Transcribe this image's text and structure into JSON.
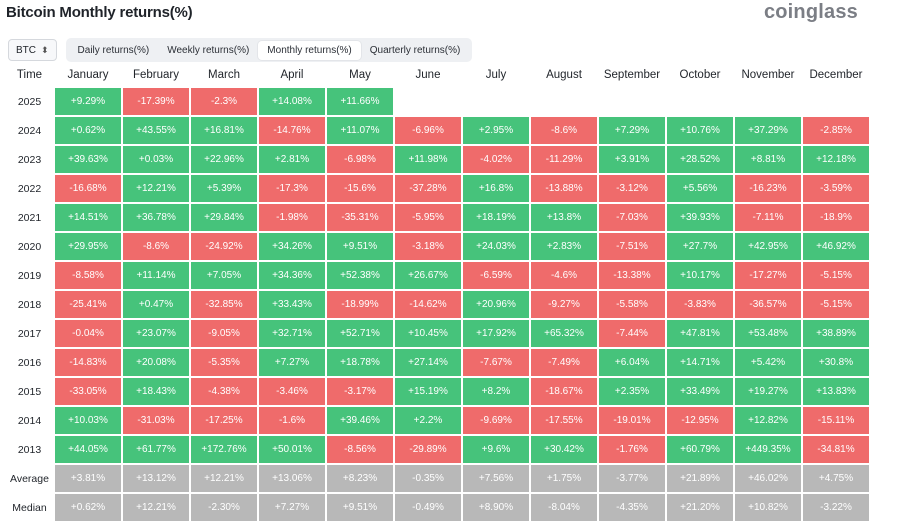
{
  "header": {
    "title": "Bitcoin Monthly returns(%)",
    "brand": "coinglass"
  },
  "toolbar": {
    "coin": "BTC",
    "tabs": [
      "Daily returns(%)",
      "Weekly returns(%)",
      "Monthly returns(%)",
      "Quarterly returns(%)"
    ],
    "active_tab": 2
  },
  "colors": {
    "positive": "#46c37b",
    "negative": "#ef6b6b",
    "summary": "#b8b8b8"
  },
  "chart_data": {
    "type": "table",
    "title": "Bitcoin Monthly returns(%)",
    "corner_label": "Time",
    "columns": [
      "January",
      "February",
      "March",
      "April",
      "May",
      "June",
      "July",
      "August",
      "September",
      "October",
      "November",
      "December"
    ],
    "rows": [
      {
        "label": "2025",
        "values": [
          "+9.29%",
          "-17.39%",
          "-2.3%",
          "+14.08%",
          "+11.66%",
          "",
          "",
          "",
          "",
          "",
          "",
          ""
        ]
      },
      {
        "label": "2024",
        "values": [
          "+0.62%",
          "+43.55%",
          "+16.81%",
          "-14.76%",
          "+11.07%",
          "-6.96%",
          "+2.95%",
          "-8.6%",
          "+7.29%",
          "+10.76%",
          "+37.29%",
          "-2.85%"
        ]
      },
      {
        "label": "2023",
        "values": [
          "+39.63%",
          "+0.03%",
          "+22.96%",
          "+2.81%",
          "-6.98%",
          "+11.98%",
          "-4.02%",
          "-11.29%",
          "+3.91%",
          "+28.52%",
          "+8.81%",
          "+12.18%"
        ]
      },
      {
        "label": "2022",
        "values": [
          "-16.68%",
          "+12.21%",
          "+5.39%",
          "-17.3%",
          "-15.6%",
          "-37.28%",
          "+16.8%",
          "-13.88%",
          "-3.12%",
          "+5.56%",
          "-16.23%",
          "-3.59%"
        ]
      },
      {
        "label": "2021",
        "values": [
          "+14.51%",
          "+36.78%",
          "+29.84%",
          "-1.98%",
          "-35.31%",
          "-5.95%",
          "+18.19%",
          "+13.8%",
          "-7.03%",
          "+39.93%",
          "-7.11%",
          "-18.9%"
        ]
      },
      {
        "label": "2020",
        "values": [
          "+29.95%",
          "-8.6%",
          "-24.92%",
          "+34.26%",
          "+9.51%",
          "-3.18%",
          "+24.03%",
          "+2.83%",
          "-7.51%",
          "+27.7%",
          "+42.95%",
          "+46.92%"
        ]
      },
      {
        "label": "2019",
        "values": [
          "-8.58%",
          "+11.14%",
          "+7.05%",
          "+34.36%",
          "+52.38%",
          "+26.67%",
          "-6.59%",
          "-4.6%",
          "-13.38%",
          "+10.17%",
          "-17.27%",
          "-5.15%"
        ]
      },
      {
        "label": "2018",
        "values": [
          "-25.41%",
          "+0.47%",
          "-32.85%",
          "+33.43%",
          "-18.99%",
          "-14.62%",
          "+20.96%",
          "-9.27%",
          "-5.58%",
          "-3.83%",
          "-36.57%",
          "-5.15%"
        ]
      },
      {
        "label": "2017",
        "values": [
          "-0.04%",
          "+23.07%",
          "-9.05%",
          "+32.71%",
          "+52.71%",
          "+10.45%",
          "+17.92%",
          "+65.32%",
          "-7.44%",
          "+47.81%",
          "+53.48%",
          "+38.89%"
        ]
      },
      {
        "label": "2016",
        "values": [
          "-14.83%",
          "+20.08%",
          "-5.35%",
          "+7.27%",
          "+18.78%",
          "+27.14%",
          "-7.67%",
          "-7.49%",
          "+6.04%",
          "+14.71%",
          "+5.42%",
          "+30.8%"
        ]
      },
      {
        "label": "2015",
        "values": [
          "-33.05%",
          "+18.43%",
          "-4.38%",
          "-3.46%",
          "-3.17%",
          "+15.19%",
          "+8.2%",
          "-18.67%",
          "+2.35%",
          "+33.49%",
          "+19.27%",
          "+13.83%"
        ]
      },
      {
        "label": "2014",
        "values": [
          "+10.03%",
          "-31.03%",
          "-17.25%",
          "-1.6%",
          "+39.46%",
          "+2.2%",
          "-9.69%",
          "-17.55%",
          "-19.01%",
          "-12.95%",
          "+12.82%",
          "-15.11%"
        ]
      },
      {
        "label": "2013",
        "values": [
          "+44.05%",
          "+61.77%",
          "+172.76%",
          "+50.01%",
          "-8.56%",
          "-29.89%",
          "+9.6%",
          "+30.42%",
          "-1.76%",
          "+60.79%",
          "+449.35%",
          "-34.81%"
        ]
      }
    ],
    "summary_rows": [
      {
        "label": "Average",
        "values": [
          "+3.81%",
          "+13.12%",
          "+12.21%",
          "+13.06%",
          "+8.23%",
          "-0.35%",
          "+7.56%",
          "+1.75%",
          "-3.77%",
          "+21.89%",
          "+46.02%",
          "+4.75%"
        ]
      },
      {
        "label": "Median",
        "values": [
          "+0.62%",
          "+12.21%",
          "-2.30%",
          "+7.27%",
          "+9.51%",
          "-0.49%",
          "+8.90%",
          "-8.04%",
          "-4.35%",
          "+21.20%",
          "+10.82%",
          "-3.22%"
        ]
      }
    ]
  }
}
